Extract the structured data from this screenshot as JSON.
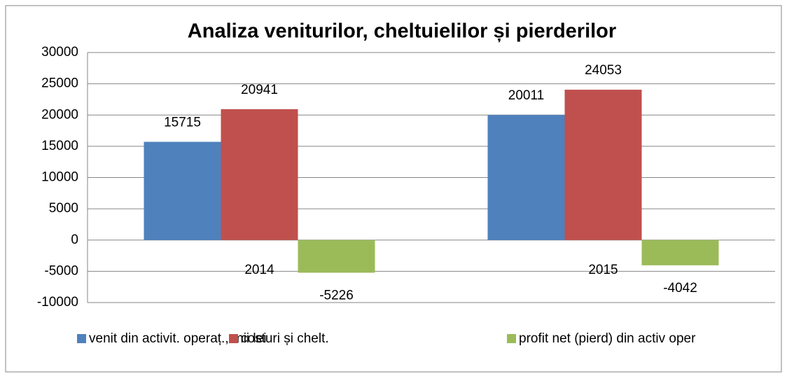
{
  "chart_data": {
    "type": "bar",
    "title": "Analiza veniturilor, cheltuielilor și pierderilor",
    "categories": [
      "2014",
      "2015"
    ],
    "series": [
      {
        "name": "venit din activit. operaț., mii lei",
        "color": "#4f81bd",
        "values": [
          15715,
          20011
        ]
      },
      {
        "name": "costuri și chelt.",
        "color": "#c0504d",
        "values": [
          20941,
          24053
        ]
      },
      {
        "name": "profit net (pierd) din activ oper",
        "color": "#9bbb59",
        "values": [
          -5226,
          -4042
        ]
      }
    ],
    "ylim": [
      -10000,
      30000
    ],
    "yticks": [
      -10000,
      -5000,
      0,
      5000,
      10000,
      15000,
      20000,
      25000,
      30000
    ],
    "grid": true,
    "legend": "bottom"
  }
}
